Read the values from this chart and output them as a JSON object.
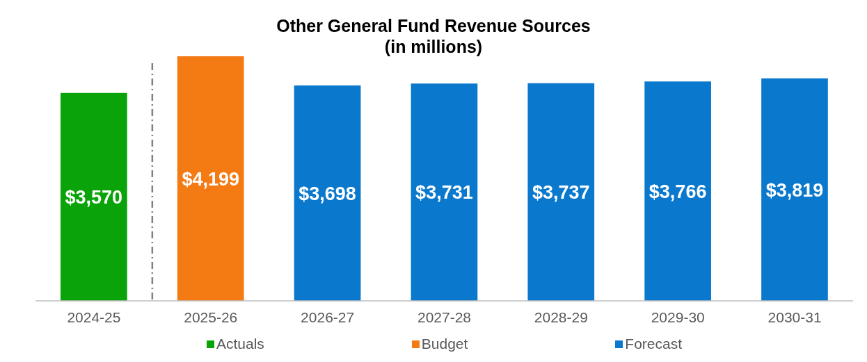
{
  "chart_data": {
    "type": "bar",
    "title": "Other General Fund Revenue Sources\n(in millions)",
    "categories": [
      "2024-25",
      "2025-26",
      "2026-27",
      "2027-28",
      "2028-29",
      "2029-30",
      "2030-31"
    ],
    "series": [
      {
        "name": "Actuals",
        "color": "#0aa30a",
        "values": [
          3570,
          null,
          null,
          null,
          null,
          null,
          null
        ],
        "value_labels": [
          "$3,570",
          null,
          null,
          null,
          null,
          null,
          null
        ]
      },
      {
        "name": "Budget",
        "color": "#f47a14",
        "values": [
          null,
          4199,
          null,
          null,
          null,
          null,
          null
        ],
        "value_labels": [
          null,
          "$4,199",
          null,
          null,
          null,
          null,
          null
        ]
      },
      {
        "name": "Forecast",
        "color": "#0a78cc",
        "values": [
          null,
          null,
          3698,
          3731,
          3737,
          3766,
          3819
        ],
        "value_labels": [
          null,
          null,
          "$3,698",
          "$3,731",
          "$3,737",
          "$3,766",
          "$3,819"
        ]
      }
    ],
    "stacked": true,
    "legend": "bottom",
    "grid": false
  }
}
